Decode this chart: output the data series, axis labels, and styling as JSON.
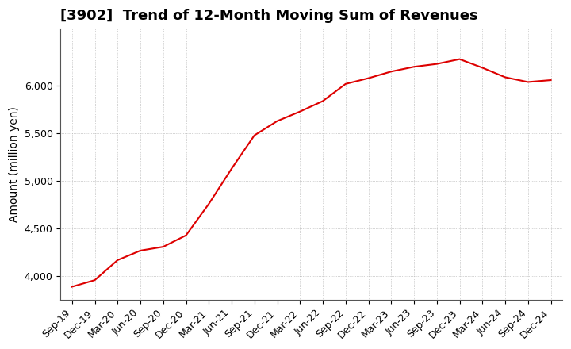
{
  "title": "[3902]  Trend of 12-Month Moving Sum of Revenues",
  "ylabel": "Amount (million yen)",
  "line_color": "#dd0000",
  "background_color": "#ffffff",
  "plot_bg_color": "#ffffff",
  "grid_color": "#aaaaaa",
  "x_labels": [
    "Sep-19",
    "Dec-19",
    "Mar-20",
    "Jun-20",
    "Sep-20",
    "Dec-20",
    "Mar-21",
    "Jun-21",
    "Sep-21",
    "Dec-21",
    "Mar-22",
    "Jun-22",
    "Sep-22",
    "Dec-22",
    "Mar-23",
    "Jun-23",
    "Sep-23",
    "Dec-23",
    "Mar-24",
    "Jun-24",
    "Sep-24",
    "Dec-24"
  ],
  "values": [
    3890,
    3960,
    4170,
    4270,
    4310,
    4430,
    4760,
    5130,
    5480,
    5630,
    5730,
    5840,
    6020,
    6080,
    6150,
    6200,
    6230,
    6280,
    6190,
    6090,
    6040,
    6060
  ],
  "ylim": [
    3750,
    6600
  ],
  "yticks": [
    4000,
    4500,
    5000,
    5500,
    6000
  ],
  "title_fontsize": 13,
  "label_fontsize": 10,
  "tick_fontsize": 9,
  "figsize": [
    7.2,
    4.4
  ],
  "dpi": 100
}
